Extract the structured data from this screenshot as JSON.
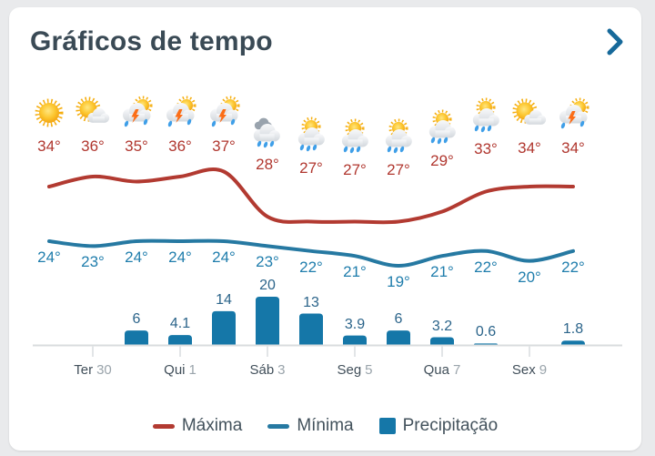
{
  "header": {
    "title": "Gráficos de tempo",
    "chevron_icon": "chevron-right"
  },
  "colors": {
    "title": "#3a4a55",
    "chevron": "#16699a",
    "max_line": "#b23a31",
    "min_line": "#2679a2",
    "bar": "#1577a8",
    "max_label": "#b0362e",
    "min_label": "#1f7dac",
    "precip_label": "#2b648a",
    "axis": "#d9dcde",
    "tick": "#e2e5e7",
    "x_label_day": "#414f5a",
    "x_label_num": "#9aa4ab"
  },
  "legend": [
    {
      "label": "Máxima",
      "swatch": "line",
      "color": "#b23a31"
    },
    {
      "label": "Mínima",
      "swatch": "line",
      "color": "#2679a2"
    },
    {
      "label": "Precipitação",
      "swatch": "square",
      "color": "#1577a8"
    }
  ],
  "chart_data": {
    "type": "line+bar",
    "title": "Gráficos de tempo",
    "x": [
      1,
      2,
      3,
      4,
      5,
      6,
      7,
      8,
      9,
      10,
      11,
      12,
      13
    ],
    "icons": [
      "sunny",
      "partly-cloudy",
      "thunderstorm",
      "thunderstorm",
      "thunderstorm",
      "rain",
      "showers",
      "showers",
      "showers",
      "showers",
      "showers",
      "partly-cloudy",
      "thunderstorm"
    ],
    "series": [
      {
        "name": "Máxima",
        "type": "line",
        "unit": "°",
        "color": "#b23a31",
        "values": [
          34,
          36,
          35,
          36,
          37,
          28,
          27,
          27,
          27,
          29,
          33,
          34,
          34
        ]
      },
      {
        "name": "Mínima",
        "type": "line",
        "unit": "°",
        "color": "#2679a2",
        "values": [
          24,
          23,
          24,
          24,
          24,
          23,
          22,
          21,
          19,
          21,
          22,
          20,
          22
        ]
      },
      {
        "name": "Precipitação",
        "type": "bar",
        "color": "#1577a8",
        "values": [
          null,
          null,
          6,
          4.1,
          14,
          20,
          13,
          3.9,
          6,
          3.2,
          0.6,
          null,
          1.8
        ]
      }
    ],
    "x_axis": {
      "ticks": [
        {
          "index": 1,
          "day": "Ter",
          "num": "30"
        },
        {
          "index": 3,
          "day": "Qui",
          "num": "1"
        },
        {
          "index": 5,
          "day": "Sáb",
          "num": "3"
        },
        {
          "index": 7,
          "day": "Seg",
          "num": "5"
        },
        {
          "index": 9,
          "day": "Qua",
          "num": "7"
        },
        {
          "index": 11,
          "day": "Sex",
          "num": "9"
        }
      ]
    },
    "legend_position": "bottom",
    "grid": false
  }
}
